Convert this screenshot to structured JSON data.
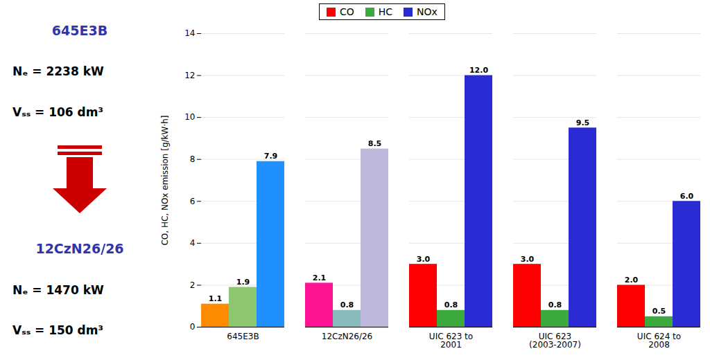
{
  "chart_data": {
    "type": "bar",
    "annotations": [
      {
        "text": "645E3B",
        "color": "#3333AA"
      },
      {
        "text": "Nₑ = 2238 kW"
      },
      {
        "text": "Vₛₛ = 106 dm³"
      },
      {
        "text": "12CzN26/26",
        "color": "#3333AA"
      },
      {
        "text": "Nₑ = 1470 kW"
      },
      {
        "text": "Vₛₛ = 150 dm³"
      }
    ],
    "categories": [
      "645E3B",
      "12CzN26/26",
      "UIC 623 to\n2001",
      "UIC 623\n(2003-2007)",
      "UIC 624 to\n2008"
    ],
    "series": [
      {
        "name": "CO",
        "color": "#FF0000",
        "colors": [
          "#FF8C00",
          "#FF1493",
          "#FF0000",
          "#FF0000",
          "#FF0000"
        ],
        "values": [
          1.1,
          2.1,
          3.0,
          3.0,
          2.0
        ],
        "value_labels": [
          "1.1",
          "2.1",
          "3.0",
          "3.0",
          "2.0"
        ]
      },
      {
        "name": "HC",
        "color": "#3DAA3D",
        "colors": [
          "#8DC870",
          "#87BBBB",
          "#3DAA3D",
          "#3DAA3D",
          "#3DAA3D"
        ],
        "values": [
          1.9,
          0.8,
          0.8,
          0.8,
          0.5
        ],
        "value_labels": [
          "1.9",
          "0.8",
          "0.8",
          "0.8",
          "0.5"
        ]
      },
      {
        "name": "NOx",
        "color": "#2B2BD4",
        "colors": [
          "#1E90FF",
          "#C0B8DC",
          "#2B2BD4",
          "#2B2BD4",
          "#2B2BD4"
        ],
        "values": [
          7.9,
          8.5,
          12.0,
          9.5,
          6.0
        ],
        "value_labels": [
          "7.9",
          "8.5",
          "12.0",
          "9.5",
          "6.0"
        ]
      }
    ],
    "ylabel": "CO, HC, NOx emission [g/kW·h]",
    "ylim": [
      0,
      14
    ],
    "yticks": [
      0,
      2,
      4,
      6,
      8,
      10,
      12,
      14
    ],
    "grid": true,
    "legend": "upper center",
    "data_labels": true
  }
}
